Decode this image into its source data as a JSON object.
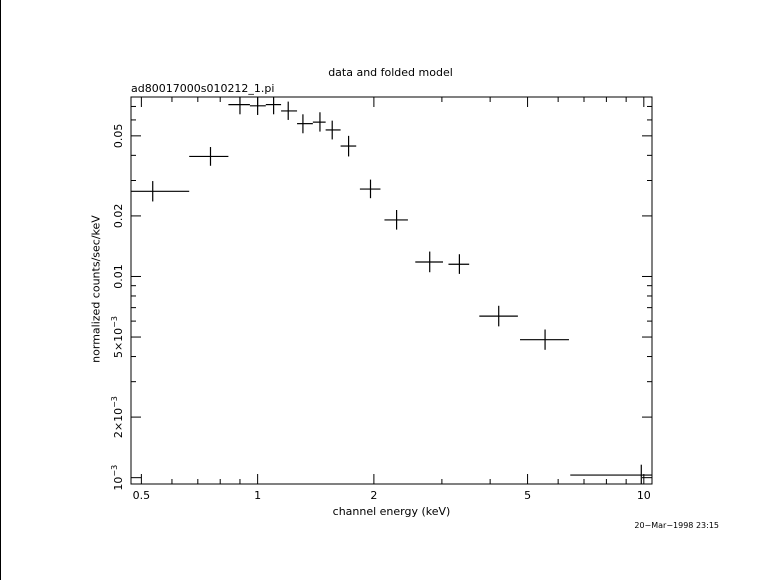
{
  "chart_data": {
    "type": "scatter",
    "title": "data and folded model",
    "subtitle": "ad80017000s010212_1.pi",
    "xlabel": "channel energy (keV)",
    "ylabel": "normalized counts/sec/keV",
    "xscale": "log",
    "yscale": "log",
    "xlim": [
      0.47,
      10.5
    ],
    "ylim": [
      0.00093,
      0.078
    ],
    "x_ticks": [
      {
        "value": 0.5,
        "label": "0.5"
      },
      {
        "value": 1,
        "label": "1"
      },
      {
        "value": 2,
        "label": "2"
      },
      {
        "value": 5,
        "label": "5"
      },
      {
        "value": 10,
        "label": "10"
      }
    ],
    "y_ticks": [
      {
        "value": 0.001,
        "label": "10",
        "sup": "−3"
      },
      {
        "value": 0.002,
        "label": "2×10",
        "sup": "−3"
      },
      {
        "value": 0.005,
        "label": "5×10",
        "sup": "−3"
      },
      {
        "value": 0.01,
        "label": "0.01"
      },
      {
        "value": 0.02,
        "label": "0.02"
      },
      {
        "value": 0.05,
        "label": "0.05"
      }
    ],
    "points": [
      {
        "x": 0.535,
        "xerr": [
          0.47,
          0.665
        ],
        "y": 0.0265,
        "yerr": [
          0.0236,
          0.0298
        ]
      },
      {
        "x": 0.755,
        "xerr": [
          0.665,
          0.84
        ],
        "y": 0.0395,
        "yerr": [
          0.0355,
          0.044
        ]
      },
      {
        "x": 0.9,
        "xerr": [
          0.84,
          0.955
        ],
        "y": 0.0715,
        "yerr": [
          0.064,
          0.078
        ]
      },
      {
        "x": 1.0,
        "xerr": [
          0.955,
          1.05
        ],
        "y": 0.0705,
        "yerr": [
          0.0635,
          0.078
        ]
      },
      {
        "x": 1.1,
        "xerr": [
          1.05,
          1.15
        ],
        "y": 0.0715,
        "yerr": [
          0.064,
          0.078
        ]
      },
      {
        "x": 1.2,
        "xerr": [
          1.15,
          1.265
        ],
        "y": 0.0665,
        "yerr": [
          0.06,
          0.074
        ]
      },
      {
        "x": 1.31,
        "xerr": [
          1.265,
          1.39
        ],
        "y": 0.0575,
        "yerr": [
          0.0515,
          0.064
        ]
      },
      {
        "x": 1.45,
        "xerr": [
          1.39,
          1.5
        ],
        "y": 0.0585,
        "yerr": [
          0.0525,
          0.0655
        ]
      },
      {
        "x": 1.56,
        "xerr": [
          1.5,
          1.64
        ],
        "y": 0.0535,
        "yerr": [
          0.048,
          0.0595
        ]
      },
      {
        "x": 1.72,
        "xerr": [
          1.64,
          1.8
        ],
        "y": 0.0445,
        "yerr": [
          0.0395,
          0.05
        ]
      },
      {
        "x": 1.96,
        "xerr": [
          1.84,
          2.08
        ],
        "y": 0.0272,
        "yerr": [
          0.0245,
          0.0303
        ]
      },
      {
        "x": 2.29,
        "xerr": [
          2.13,
          2.45
        ],
        "y": 0.0191,
        "yerr": [
          0.0171,
          0.0214
        ]
      },
      {
        "x": 2.79,
        "xerr": [
          2.56,
          3.02
        ],
        "y": 0.0118,
        "yerr": [
          0.0105,
          0.0133
        ]
      },
      {
        "x": 3.33,
        "xerr": [
          3.12,
          3.53
        ],
        "y": 0.0115,
        "yerr": [
          0.0103,
          0.0129
        ]
      },
      {
        "x": 4.21,
        "xerr": [
          3.75,
          4.72
        ],
        "y": 0.00635,
        "yerr": [
          0.00565,
          0.00715
        ]
      },
      {
        "x": 5.55,
        "xerr": [
          4.78,
          6.4
        ],
        "y": 0.00485,
        "yerr": [
          0.00432,
          0.00545
        ]
      },
      {
        "x": 9.85,
        "xerr": [
          6.45,
          10.5
        ],
        "y": 0.00103,
        "yerr": [
          0.00093,
          0.00116
        ]
      }
    ]
  },
  "footer": {
    "timestamp": "20−Mar−1998 23:15"
  }
}
